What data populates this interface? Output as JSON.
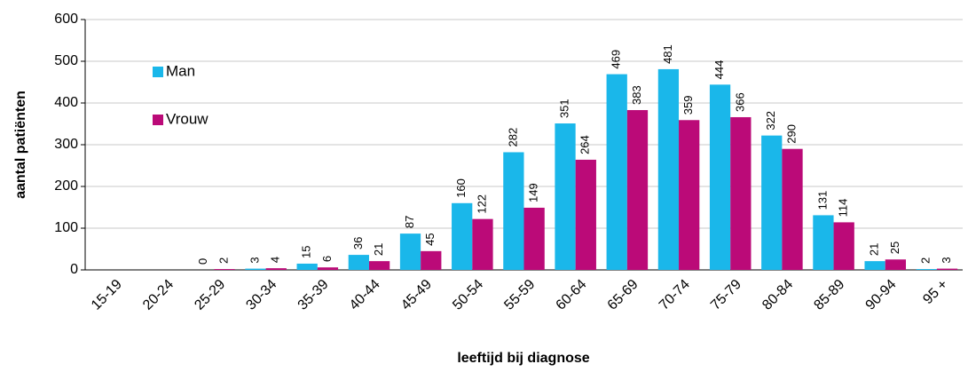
{
  "chart_data": {
    "type": "bar",
    "x_label": "leeftijd bij diagnose",
    "y_label": "aantal patiënten",
    "categories": [
      "15-19",
      "20-24",
      "25-29",
      "30-34",
      "35-39",
      "40-44",
      "45-49",
      "50-54",
      "55-59",
      "60-64",
      "65-69",
      "70-74",
      "75-79",
      "80-84",
      "85-89",
      "90-94",
      "95 +"
    ],
    "series": [
      {
        "name": "Man",
        "color": "#1ab7ea",
        "values": [
          null,
          null,
          0,
          3,
          15,
          36,
          87,
          160,
          282,
          351,
          469,
          481,
          444,
          322,
          131,
          21,
          2
        ]
      },
      {
        "name": "Vrouw",
        "color": "#bb0a78",
        "values": [
          null,
          null,
          2,
          4,
          6,
          21,
          45,
          122,
          149,
          264,
          383,
          359,
          366,
          290,
          114,
          25,
          3
        ]
      }
    ],
    "ylim": [
      0,
      600
    ],
    "yticks": [
      0,
      100,
      200,
      300,
      400,
      500,
      600
    ],
    "grid": true,
    "legend": "upper left"
  }
}
